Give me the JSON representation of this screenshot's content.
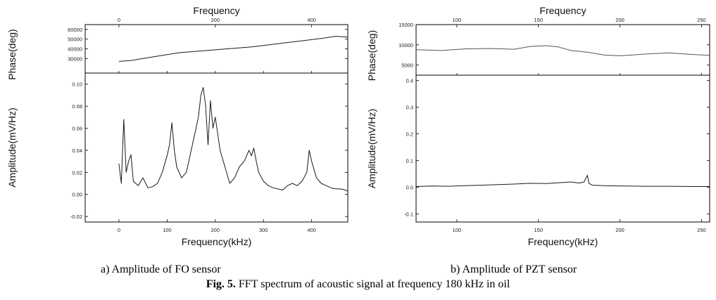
{
  "captions": {
    "a": "a) Amplitude of FO sensor",
    "b": "b) Amplitude of PZT sensor",
    "fig_prefix": "Fig. 5.",
    "fig_text": " FFT spectrum of acoustic signal at frequency 180 kHz in oil"
  },
  "colors": {
    "line": "#1a1a1a",
    "phase_line_pzt": "#555555",
    "frame": "#000000"
  },
  "chart_data": [
    {
      "panel": "a",
      "type": "line",
      "top_axis_label": "Frequency",
      "top_ticks": [
        0,
        200,
        400
      ],
      "x_label": "Frequency(kHz)",
      "x_range": [
        -70,
        475
      ],
      "x_ticks": [
        0,
        100,
        200,
        300,
        400
      ],
      "phase": {
        "ylabel": "Phase(deg)",
        "ylim": [
          15000,
          65000
        ],
        "yticks": [
          30000,
          40000,
          50000,
          60000
        ],
        "x": [
          0,
          25,
          50,
          75,
          100,
          125,
          150,
          175,
          200,
          225,
          250,
          275,
          300,
          325,
          350,
          375,
          400,
          425,
          450,
          475
        ],
        "y": [
          27000,
          28000,
          30000,
          32000,
          34000,
          36000,
          37000,
          38000,
          39000,
          40000,
          41000,
          42000,
          43500,
          45000,
          46500,
          48000,
          49500,
          51000,
          53000,
          52000
        ]
      },
      "amplitude": {
        "ylabel": "Amplitude(mV/Hz)",
        "ylim": [
          -0.025,
          0.11
        ],
        "yticks": [
          -0.02,
          0.0,
          0.02,
          0.04,
          0.06,
          0.08,
          0.1
        ],
        "x": [
          0,
          5,
          10,
          15,
          20,
          25,
          30,
          40,
          50,
          60,
          70,
          80,
          90,
          100,
          105,
          110,
          115,
          120,
          130,
          140,
          150,
          160,
          165,
          170,
          175,
          180,
          185,
          190,
          195,
          200,
          210,
          220,
          230,
          240,
          250,
          260,
          270,
          275,
          280,
          285,
          290,
          300,
          310,
          320,
          330,
          340,
          350,
          360,
          370,
          380,
          390,
          395,
          400,
          410,
          420,
          430,
          440,
          450,
          460,
          470,
          475
        ],
        "y": [
          0.028,
          0.01,
          0.068,
          0.02,
          0.03,
          0.036,
          0.012,
          0.008,
          0.015,
          0.006,
          0.007,
          0.01,
          0.02,
          0.035,
          0.045,
          0.065,
          0.04,
          0.025,
          0.015,
          0.02,
          0.04,
          0.06,
          0.07,
          0.09,
          0.097,
          0.08,
          0.045,
          0.085,
          0.06,
          0.07,
          0.04,
          0.025,
          0.01,
          0.015,
          0.025,
          0.03,
          0.04,
          0.035,
          0.042,
          0.03,
          0.02,
          0.012,
          0.008,
          0.006,
          0.005,
          0.004,
          0.008,
          0.01,
          0.008,
          0.012,
          0.02,
          0.04,
          0.03,
          0.015,
          0.01,
          0.008,
          0.006,
          0.005,
          0.005,
          0.004,
          0.003
        ]
      }
    },
    {
      "panel": "b",
      "type": "line",
      "top_axis_label": "Frequency",
      "top_ticks": [
        100,
        150,
        200,
        250
      ],
      "x_label": "Frequency(kHz)",
      "x_range": [
        75,
        255
      ],
      "x_ticks": [
        100,
        150,
        200,
        250
      ],
      "phase": {
        "ylabel": "Phase(deg)",
        "ylim": [
          2500,
          15000
        ],
        "yticks": [
          5000,
          10000,
          15000
        ],
        "x": [
          75,
          90,
          105,
          120,
          135,
          145,
          155,
          162,
          170,
          180,
          190,
          200,
          215,
          230,
          245,
          255
        ],
        "y": [
          8800,
          8600,
          9000,
          9100,
          8900,
          9600,
          9800,
          9500,
          8600,
          8200,
          7500,
          7300,
          7700,
          8000,
          7600,
          7400
        ]
      },
      "amplitude": {
        "ylabel": "Amplitude(mV/Hz)",
        "ylim": [
          -0.13,
          0.42
        ],
        "yticks": [
          -0.1,
          0.0,
          0.1,
          0.2,
          0.3,
          0.4
        ],
        "x": [
          75,
          85,
          95,
          105,
          115,
          125,
          135,
          145,
          155,
          165,
          170,
          175,
          178,
          180,
          181,
          183,
          190,
          200,
          215,
          230,
          245,
          255
        ],
        "y": [
          0.003,
          0.005,
          0.004,
          0.006,
          0.008,
          0.01,
          0.012,
          0.015,
          0.014,
          0.018,
          0.02,
          0.016,
          0.02,
          0.045,
          0.015,
          0.008,
          0.006,
          0.005,
          0.004,
          0.004,
          0.003,
          0.003
        ]
      }
    }
  ]
}
